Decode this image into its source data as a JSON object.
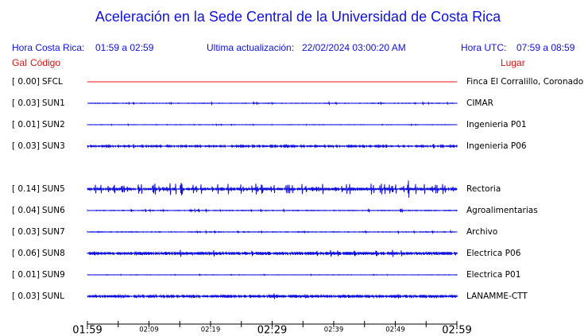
{
  "header": {
    "title": "Aceleración en la Sede Central de la Universidad de Costa Rica",
    "local_label": "Hora Costa Rica:",
    "local_range": "01:59 a 02:59",
    "update_label": "Ultima actualización:",
    "update_value": "22/02/2024 03:00:20 AM",
    "utc_label": "Hora UTC:",
    "utc_range": "07:59 a 08:59"
  },
  "columns": {
    "gal": "Gal",
    "code": "Código",
    "place": "Lugar"
  },
  "rows": [
    {
      "gal": "[  0.00]",
      "code": "SFCL",
      "place": "Finca El Corralillo, Coronado"
    },
    {
      "gal": "[  0.03]",
      "code": "SUN1",
      "place": "CIMAR"
    },
    {
      "gal": "[  0.01]",
      "code": "SUN2",
      "place": "Ingenieria P01"
    },
    {
      "gal": "[  0.03]",
      "code": "SUN3",
      "place": "Ingenieria P06"
    },
    {
      "gal": "[  0.14]",
      "code": "SUN5",
      "place": "Rectoria"
    },
    {
      "gal": "[  0.04]",
      "code": "SUN6",
      "place": "Agroalimentarias"
    },
    {
      "gal": "[  0.03]",
      "code": "SUN7",
      "place": "Archivo"
    },
    {
      "gal": "[  0.06]",
      "code": "SUN8",
      "place": "Electrica P06"
    },
    {
      "gal": "[  0.01]",
      "code": "SUN9",
      "place": "Electrica P01"
    },
    {
      "gal": "[  0.03]",
      "code": "SUNL",
      "place": "LANAMME-CTT"
    }
  ],
  "axis": {
    "labels": [
      "01:59",
      "02:09",
      "02:19",
      "02:29",
      "02:39",
      "02:49",
      "02:59"
    ]
  }
}
